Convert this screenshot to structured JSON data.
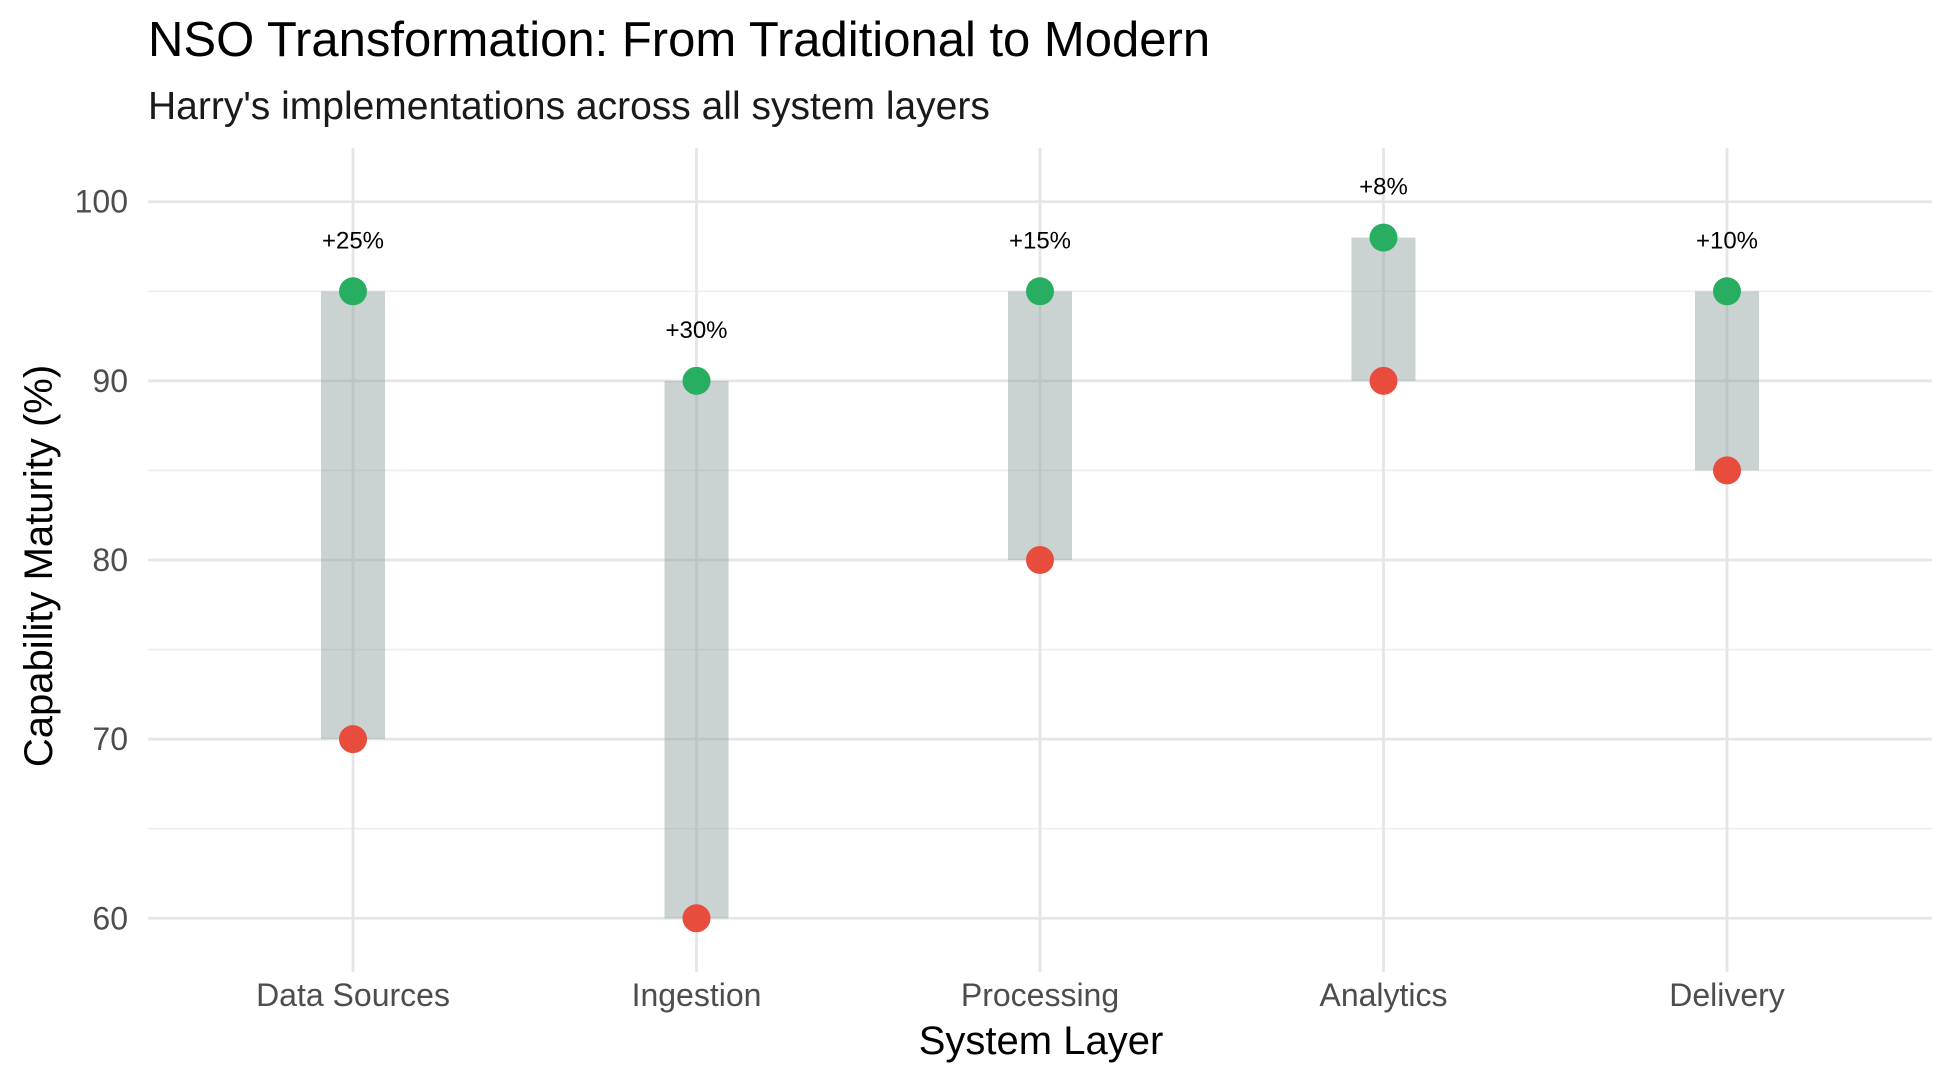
{
  "chart_data": {
    "type": "dumbbell",
    "title": "NSO Transformation: From Traditional to Modern",
    "subtitle": "Harry's implementations across all system layers",
    "xlabel": "System Layer",
    "ylabel": "Capability Maturity (%)",
    "categories": [
      "Data Sources",
      "Ingestion",
      "Processing",
      "Analytics",
      "Delivery"
    ],
    "series": [
      {
        "values": [
          70,
          60,
          80,
          90,
          85
        ],
        "color": "#e74c3c"
      },
      {
        "values": [
          95,
          90,
          95,
          98,
          95
        ],
        "color": "#27ae60"
      }
    ],
    "labels": [
      "+25%",
      "+30%",
      "+15%",
      "+8%",
      "+10%"
    ],
    "range_bar_color": "#95a5a6",
    "ylim": [
      57,
      103
    ],
    "yticks": [
      60,
      70,
      80,
      90,
      100
    ],
    "yminor": [
      65,
      75,
      85,
      95
    ],
    "grid": true,
    "legend": "none"
  }
}
